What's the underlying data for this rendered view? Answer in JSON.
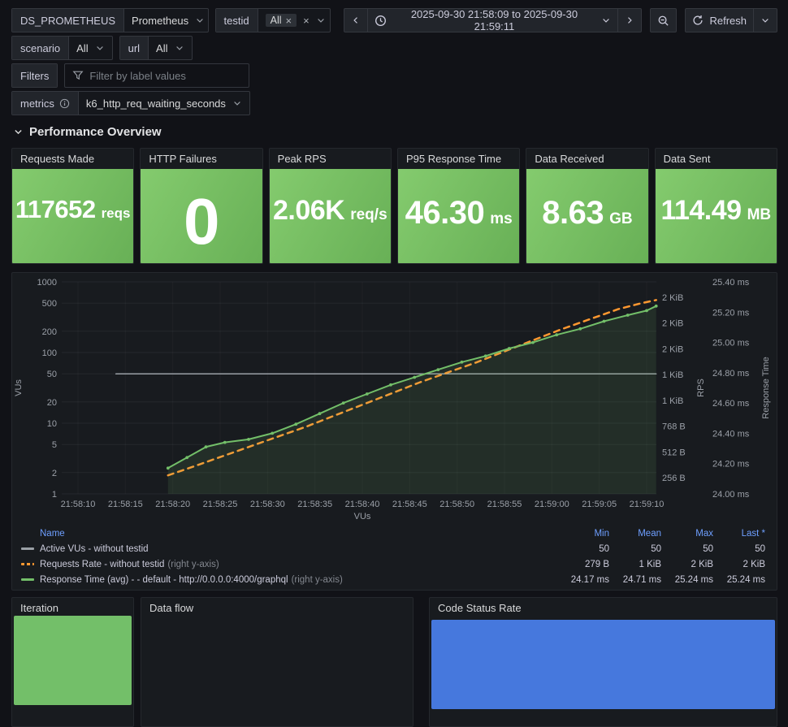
{
  "toolbar": {
    "datasource_label": "DS_PROMETHEUS",
    "datasource_value": "Prometheus",
    "testid": {
      "label": "testid",
      "selected": "All"
    },
    "time_range": "2025-09-30 21:58:09 to 2025-09-30 21:59:11",
    "refresh_label": "Refresh"
  },
  "variables": {
    "scenario": {
      "label": "scenario",
      "value": "All"
    },
    "url": {
      "label": "url",
      "value": "All"
    },
    "filters": {
      "label": "Filters",
      "placeholder": "Filter by label values"
    },
    "metrics": {
      "label": "metrics",
      "value": "k6_http_req_waiting_seconds"
    }
  },
  "section_title": "Performance Overview",
  "stats": [
    {
      "title": "Requests Made",
      "value": "117652",
      "unit": "reqs"
    },
    {
      "title": "HTTP Failures",
      "value": "0",
      "unit": ""
    },
    {
      "title": "Peak RPS",
      "value": "2.06K",
      "unit": "req/s"
    },
    {
      "title": "P95 Response Time",
      "value": "46.30",
      "unit": "ms"
    },
    {
      "title": "Data Received",
      "value": "8.63",
      "unit": "GB"
    },
    {
      "title": "Data Sent",
      "value": "114.49",
      "unit": "MB"
    }
  ],
  "chart_data": {
    "type": "line",
    "x_ticks": [
      "21:58:10",
      "21:58:15",
      "21:58:20",
      "21:58:25",
      "21:58:30",
      "21:58:35",
      "21:58:40",
      "21:58:45",
      "21:58:50",
      "21:58:55",
      "21:59:00",
      "21:59:05",
      "21:59:10"
    ],
    "x_axis_label": "VUs",
    "left_axis": {
      "title": "VUs",
      "scale": "log",
      "ticks": [
        1000,
        500,
        200,
        100,
        50,
        20,
        10,
        5,
        2,
        1
      ],
      "range": [
        1,
        1000
      ]
    },
    "right_axis_rps": {
      "title": "RPS",
      "ticks": [
        "2 KiB",
        "2 KiB",
        "2 KiB",
        "1 KiB",
        "1 KiB",
        "768 B",
        "512 B",
        "256 B"
      ],
      "range_bytes": [
        256,
        2048
      ]
    },
    "right_axis_rt": {
      "title": "Response Time",
      "ticks": [
        "25.40 ms",
        "25.20 ms",
        "25.00 ms",
        "24.80 ms",
        "24.60 ms",
        "24.40 ms",
        "24.20 ms",
        "24.00 ms"
      ],
      "range_ms": [
        24.0,
        25.4
      ]
    },
    "series": [
      {
        "name": "Active VUs - without testid",
        "axis": "left",
        "color": "#9aa0a6",
        "dashed": false,
        "width": 1.5,
        "markers": false,
        "points": [
          [
            4,
            50
          ],
          [
            61,
            50
          ]
        ]
      },
      {
        "name": "Requests Rate - without testid",
        "axis": "rps",
        "color": "#FF9830",
        "dashed": true,
        "width": 2.5,
        "markers": false,
        "points": [
          [
            9.5,
            279
          ],
          [
            12,
            360
          ],
          [
            15,
            460
          ],
          [
            18,
            560
          ],
          [
            21,
            660
          ],
          [
            24,
            760
          ],
          [
            27,
            870
          ],
          [
            30,
            980
          ],
          [
            33,
            1090
          ],
          [
            36,
            1200
          ],
          [
            39,
            1300
          ],
          [
            42,
            1400
          ],
          [
            45,
            1510
          ],
          [
            48,
            1620
          ],
          [
            51,
            1730
          ],
          [
            54,
            1830
          ],
          [
            57,
            1930
          ],
          [
            59.5,
            1990
          ],
          [
            61,
            2020
          ]
        ]
      },
      {
        "name": "Response Time (avg) - - default - http://0.0.0.0:4000/graphql",
        "axis": "rt",
        "color": "#73BF69",
        "dashed": false,
        "width": 2,
        "fill": true,
        "markers": true,
        "points": [
          [
            9.5,
            24.17
          ],
          [
            11.5,
            24.24
          ],
          [
            13.5,
            24.31
          ],
          [
            15.5,
            24.34
          ],
          [
            18,
            24.36
          ],
          [
            20.5,
            24.4
          ],
          [
            23,
            24.46
          ],
          [
            25.5,
            24.53
          ],
          [
            28,
            24.6
          ],
          [
            30.5,
            24.66
          ],
          [
            33,
            24.72
          ],
          [
            35.5,
            24.77
          ],
          [
            38,
            24.82
          ],
          [
            40.5,
            24.87
          ],
          [
            43,
            24.91
          ],
          [
            45.5,
            24.96
          ],
          [
            48,
            25.0
          ],
          [
            50.5,
            25.05
          ],
          [
            53,
            25.09
          ],
          [
            55.5,
            25.14
          ],
          [
            58,
            25.18
          ],
          [
            60,
            25.21
          ],
          [
            61,
            25.24
          ]
        ]
      }
    ]
  },
  "legend": {
    "headers": [
      "Name",
      "Min",
      "Mean",
      "Max",
      "Last *"
    ],
    "rows": [
      {
        "name": "Active VUs - without testid",
        "suffix": "",
        "color": "#9aa0a6",
        "dashed": false,
        "min": "50",
        "mean": "50",
        "max": "50",
        "last": "50"
      },
      {
        "name": "Requests Rate - without testid",
        "suffix": "(right y-axis)",
        "color": "#FF9830",
        "dashed": true,
        "min": "279 B",
        "mean": "1 KiB",
        "max": "2 KiB",
        "last": "2 KiB"
      },
      {
        "name": "Response Time (avg) - - default - http://0.0.0.0:4000/graphql",
        "suffix": "(right y-axis)",
        "color": "#73BF69",
        "dashed": false,
        "min": "24.17 ms",
        "mean": "24.71 ms",
        "max": "25.24 ms",
        "last": "25.24 ms"
      }
    ]
  },
  "bottom_panels": {
    "iteration": {
      "title": "Iteration",
      "bar_color": "#73BF69"
    },
    "data_flow": {
      "title": "Data flow"
    },
    "code_status": {
      "title": "Code Status Rate",
      "bar_color": "#4678dd"
    }
  },
  "colors": {
    "page_bg": "#111217",
    "panel_bg": "#181b1f",
    "stat_green": "#73BF69",
    "orange": "#FF9830",
    "legend_header_blue": "#6e9fff"
  }
}
